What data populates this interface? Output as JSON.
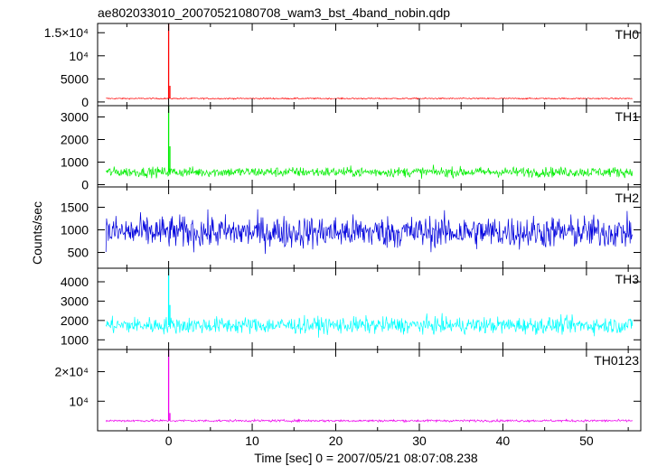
{
  "chart_data": {
    "type": "line",
    "title": "ae802033010_20070521080708_wam3_bst_4band_nobin.qdp",
    "xlabel": "Time [sec] 0 = 2007/05/21 08:07:08.238",
    "ylabel": "Counts/sec",
    "xlim": [
      -8.5,
      56.5
    ],
    "x_ticks": [
      0,
      10,
      20,
      30,
      40,
      50
    ],
    "x_tick_labels": [
      "0",
      "10",
      "20",
      "30",
      "40",
      "50"
    ],
    "grid": false,
    "legend": "none",
    "panels": [
      {
        "name": "TH0",
        "color": "#ff0000",
        "ylim": [
          -800,
          17000
        ],
        "y_ticks": [
          0,
          5000,
          10000,
          15000
        ],
        "y_tick_labels": [
          "0",
          "5000",
          "10⁴",
          "1.5×10⁴"
        ],
        "baseline": 750,
        "noise": 160,
        "burst": [
          {
            "x": 0.0,
            "y": 17000
          },
          {
            "x": 0.15,
            "y": 3500
          }
        ]
      },
      {
        "name": "TH1",
        "color": "#00ee00",
        "ylim": [
          -100,
          3500
        ],
        "y_ticks": [
          0,
          1000,
          2000,
          3000
        ],
        "y_tick_labels": [
          "0",
          "1000",
          "2000",
          "3000"
        ],
        "baseline": 560,
        "noise": 260,
        "burst": [
          {
            "x": 0.0,
            "y": 3500
          },
          {
            "x": 0.15,
            "y": 1700
          }
        ]
      },
      {
        "name": "TH2",
        "color": "#0000dd",
        "ylim": [
          150,
          1950
        ],
        "y_ticks": [
          500,
          1000,
          1500
        ],
        "y_tick_labels": [
          "500",
          "1000",
          "1500"
        ],
        "baseline": 950,
        "noise": 420,
        "burst": []
      },
      {
        "name": "TH3",
        "color": "#00ffff",
        "ylim": [
          500,
          4700
        ],
        "y_ticks": [
          1000,
          2000,
          3000,
          4000
        ],
        "y_tick_labels": [
          "1000",
          "2000",
          "3000",
          "4000"
        ],
        "baseline": 1750,
        "noise": 500,
        "burst": [
          {
            "x": 0.0,
            "y": 4700
          },
          {
            "x": 0.15,
            "y": 2800
          }
        ]
      },
      {
        "name": "TH0123",
        "color": "#ee00ee",
        "ylim": [
          0,
          27500
        ],
        "y_ticks": [
          10000,
          20000
        ],
        "y_tick_labels": [
          "10⁴",
          "2×10⁴"
        ],
        "baseline": 3400,
        "noise": 450,
        "burst": [
          {
            "x": 0.0,
            "y": 27500
          },
          {
            "x": 0.15,
            "y": 6000
          }
        ]
      }
    ]
  }
}
